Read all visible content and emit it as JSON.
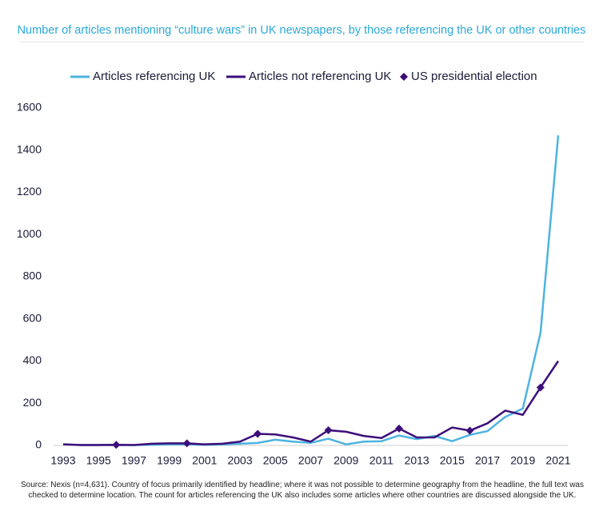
{
  "chart_data": {
    "type": "line",
    "title": "Number of articles mentioning “culture wars” in UK newspapers, by those referencing the UK or other countries",
    "source": "Source: Nexis (n=4,631). Country of focus primarily identified by headline; where it was not possible to determine geography from the headline, the full text was checked to determine location. The count for articles referencing the UK also includes some articles where other countries are discussed alongside the UK.",
    "x": [
      1993,
      1994,
      1995,
      1996,
      1997,
      1998,
      1999,
      2000,
      2001,
      2002,
      2003,
      2004,
      2005,
      2006,
      2007,
      2008,
      2009,
      2010,
      2011,
      2012,
      2013,
      2014,
      2015,
      2016,
      2017,
      2018,
      2019,
      2020,
      2021
    ],
    "series": [
      {
        "name": "Articles referencing UK",
        "color": "#4db3e0",
        "values": [
          5,
          2,
          2,
          2,
          2,
          3,
          5,
          5,
          3,
          5,
          8,
          12,
          27,
          18,
          12,
          32,
          5,
          18,
          20,
          47,
          30,
          45,
          20,
          50,
          68,
          135,
          175,
          535,
          1470
        ]
      },
      {
        "name": "Articles not referencing UK",
        "color": "#3d0e7a",
        "values": [
          5,
          2,
          2,
          3,
          2,
          8,
          10,
          10,
          5,
          8,
          18,
          55,
          52,
          38,
          18,
          72,
          65,
          45,
          35,
          80,
          38,
          38,
          85,
          70,
          105,
          165,
          145,
          275,
          400
        ]
      },
      {
        "name": "US presidential election",
        "color": "#3d0e7a",
        "marker": "diamond",
        "x": [
          1996,
          2000,
          2004,
          2008,
          2012,
          2016,
          2020
        ],
        "values": [
          3,
          10,
          55,
          72,
          80,
          70,
          275
        ]
      }
    ],
    "xlim": [
      1993,
      2021
    ],
    "xticks": [
      1993,
      1995,
      1997,
      1999,
      2001,
      2003,
      2005,
      2007,
      2009,
      2011,
      2013,
      2015,
      2017,
      2019,
      2021
    ],
    "ylim": [
      0,
      1600
    ],
    "yticks": [
      0,
      200,
      400,
      600,
      800,
      1000,
      1200,
      1400,
      1600
    ],
    "grid": false
  }
}
